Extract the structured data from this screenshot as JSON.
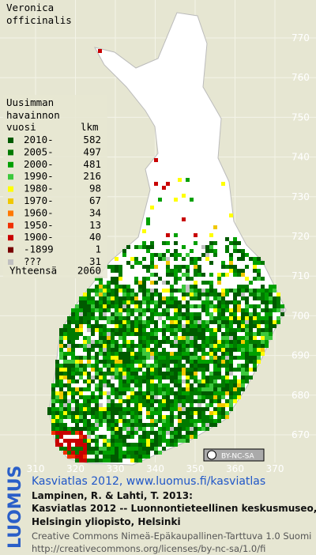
{
  "title_lines": [
    "Veronica",
    "officinalis"
  ],
  "legend": {
    "heading_lines": [
      "Uusimman",
      "havainnon",
      "vuosi"
    ],
    "count_heading": "lkm",
    "items": [
      {
        "label": "2010-",
        "count": 582,
        "color": "#005a00"
      },
      {
        "label": "2005-",
        "count": 497,
        "color": "#007a00"
      },
      {
        "label": "2000-",
        "count": 481,
        "color": "#00a000"
      },
      {
        "label": "1990-",
        "count": 216,
        "color": "#3cc83c"
      },
      {
        "label": "1980-",
        "count": 98,
        "color": "#ffff00"
      },
      {
        "label": "1970-",
        "count": 67,
        "color": "#f0c800"
      },
      {
        "label": "1960-",
        "count": 34,
        "color": "#ff7800"
      },
      {
        "label": "1950-",
        "count": 13,
        "color": "#f03000"
      },
      {
        "label": "1900-",
        "count": 40,
        "color": "#c80000"
      },
      {
        "label": "-1899",
        "count": 1,
        "color": "#780000"
      },
      {
        "label": "???",
        "count": 31,
        "color": "#c0c0c0"
      }
    ],
    "total_label": "Yhteensä",
    "total": 2060
  },
  "x_ticks": [
    310,
    320,
    330,
    340,
    350,
    360,
    370
  ],
  "y_ticks": [
    770,
    760,
    750,
    740,
    730,
    720,
    710,
    700,
    690,
    680,
    670
  ],
  "license_badge": "BY-NC-SA",
  "side_label": "LUOMUS",
  "credits": {
    "link": "Kasviatlas 2012, www.luomus.fi/kasviatlas",
    "lines": [
      "Lampinen, R. & Lahti, T. 2013:",
      "Kasviatlas 2012 -- Luonnontieteellinen keskusmuseo,",
      "Helsingin yliopisto, Helsinki"
    ],
    "license_lines": [
      "Creative Commons Nimeä-Epäkaupallinen-Tarttuva 1.0 Suomi",
      "http://creativecommons.org/licenses/by-nc-sa/1.0/fi"
    ]
  }
}
